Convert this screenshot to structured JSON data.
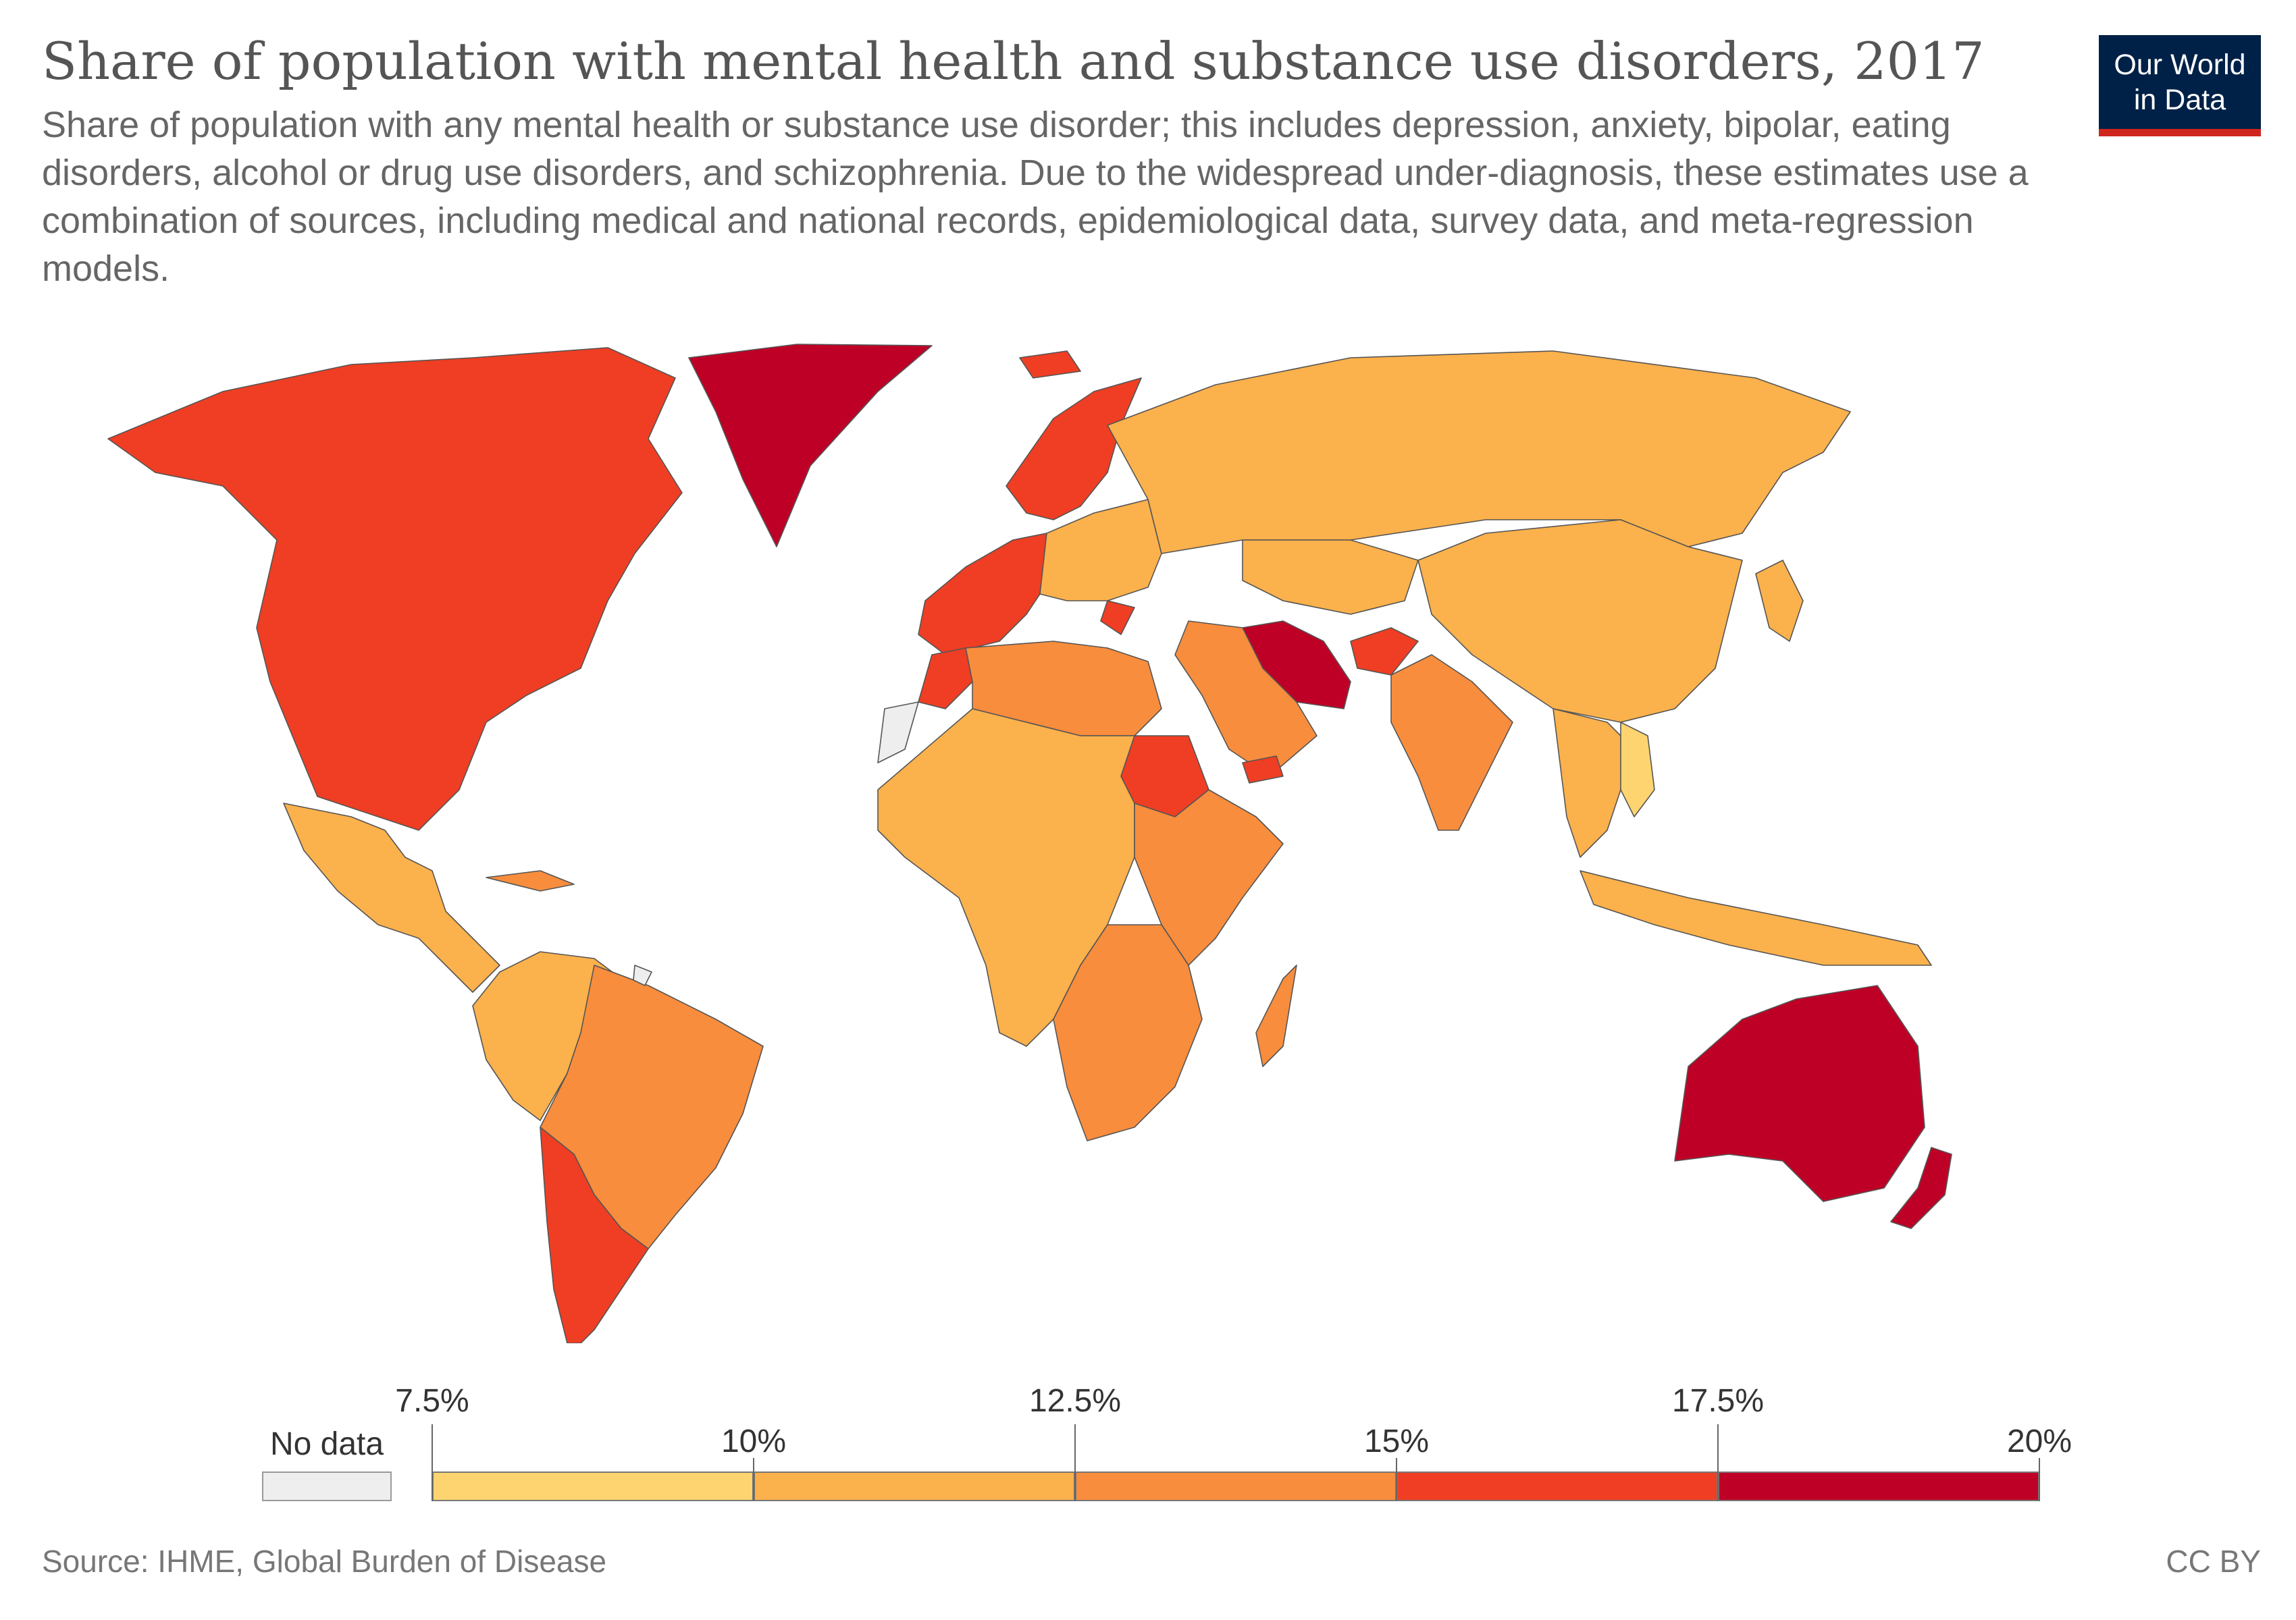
{
  "header": {
    "title": "Share of population with mental health and substance use disorders, 2017",
    "subtitle": "Share of population with any mental health or substance use disorder; this includes depression, anxiety, bipolar, eating disorders, alcohol or drug use disorders, and schizophrenia. Due to the widespread under-diagnosis, these estimates use a combination of sources, including medical and national records, epidemiological data, survey data, and meta-regression models."
  },
  "logo": {
    "line1": "Our World",
    "line2": "in Data"
  },
  "legend": {
    "no_data_label": "No data",
    "no_data_color": "#eeeeee",
    "ticks": [
      "7.5%",
      "10%",
      "12.5%",
      "15%",
      "17.5%",
      "20%"
    ],
    "bins": [
      {
        "from": 7.5,
        "to": 10,
        "color": "#fdd470"
      },
      {
        "from": 10,
        "to": 12.5,
        "color": "#fbb14c"
      },
      {
        "from": 12.5,
        "to": 15,
        "color": "#f88d3d"
      },
      {
        "from": 15,
        "to": 17.5,
        "color": "#ef3e23"
      },
      {
        "from": 17.5,
        "to": 20,
        "color": "#bf0026"
      }
    ]
  },
  "map_data": {
    "regions": [
      {
        "name": "North America (USA, Canada)",
        "bin": 4
      },
      {
        "name": "Greenland",
        "bin": 5
      },
      {
        "name": "Mexico and Central America",
        "bin": 2
      },
      {
        "name": "Cuba and Caribbean",
        "bin": 3
      },
      {
        "name": "Colombia, Venezuela, Ecuador, Peru",
        "bin": 2
      },
      {
        "name": "Guyana, Suriname, Brazil, Bolivia, Paraguay, Uruguay",
        "bin": 3
      },
      {
        "name": "Chile and Argentina",
        "bin": 4
      },
      {
        "name": "French Guiana",
        "bin": 0
      },
      {
        "name": "Iceland",
        "bin": 4
      },
      {
        "name": "Norway, Sweden, Finland",
        "bin": 4
      },
      {
        "name": "Western Europe",
        "bin": 4
      },
      {
        "name": "Central and Eastern Europe",
        "bin": 2
      },
      {
        "name": "Greece",
        "bin": 4
      },
      {
        "name": "Russia",
        "bin": 2
      },
      {
        "name": "Central Asia",
        "bin": 2
      },
      {
        "name": "Iran",
        "bin": 5
      },
      {
        "name": "Afghanistan",
        "bin": 4
      },
      {
        "name": "Middle East",
        "bin": 3
      },
      {
        "name": "Yemen",
        "bin": 4
      },
      {
        "name": "India",
        "bin": 3
      },
      {
        "name": "China and Mongolia",
        "bin": 2
      },
      {
        "name": "Japan and Korea",
        "bin": 2
      },
      {
        "name": "Southeast Asia",
        "bin": 2
      },
      {
        "name": "Vietnam",
        "bin": 1
      },
      {
        "name": "Indonesia and Papua",
        "bin": 2
      },
      {
        "name": "Morocco",
        "bin": 4
      },
      {
        "name": "North Africa",
        "bin": 3
      },
      {
        "name": "Sudan",
        "bin": 4
      },
      {
        "name": "West and Central Africa",
        "bin": 2
      },
      {
        "name": "East Africa",
        "bin": 3
      },
      {
        "name": "Southern Africa",
        "bin": 3
      },
      {
        "name": "Madagascar",
        "bin": 3
      },
      {
        "name": "Western Sahara",
        "bin": 0
      },
      {
        "name": "Australia",
        "bin": 5
      },
      {
        "name": "New Zealand",
        "bin": 5
      }
    ]
  },
  "footer": {
    "source": "Source: IHME, Global Burden of Disease",
    "license": "CC BY"
  }
}
